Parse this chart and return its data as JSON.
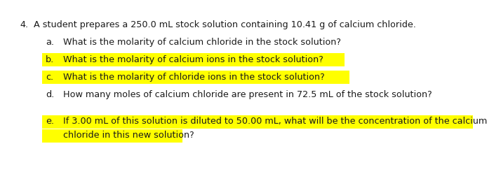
{
  "bg_color": "#ffffff",
  "text_color": "#1a1a1a",
  "highlight_color": "#ffff00",
  "font_size": 9.2,
  "title_num": "4.",
  "title_text": "A student prepares a 250.0 mL stock solution containing 10.41 g of calcium chloride.",
  "questions": [
    {
      "label": "a.",
      "text": "What is the molarity of calcium chloride in the stock solution?",
      "highlight": false,
      "multiline": false
    },
    {
      "label": "b.",
      "text": "What is the molarity of calcium ions in the stock solution?",
      "highlight": true,
      "multiline": false
    },
    {
      "label": "c.",
      "text": "What is the molarity of chloride ions in the stock solution?",
      "highlight": true,
      "multiline": false
    },
    {
      "label": "d.",
      "text": "How many moles of calcium chloride are present in 72.5 mL of the stock solution?",
      "highlight": false,
      "multiline": false
    },
    {
      "label": "e.",
      "text": "If 3.00 mL of this solution is diluted to 50.00 mL, what will be the concentration of the calcium chloride in this new solution?",
      "highlight": true,
      "multiline": true,
      "line1": "If 3.00 mL of this solution is diluted to 50.00 mL, what will be the concentration of the calcium",
      "line2": "chloride in this new solution?"
    }
  ]
}
